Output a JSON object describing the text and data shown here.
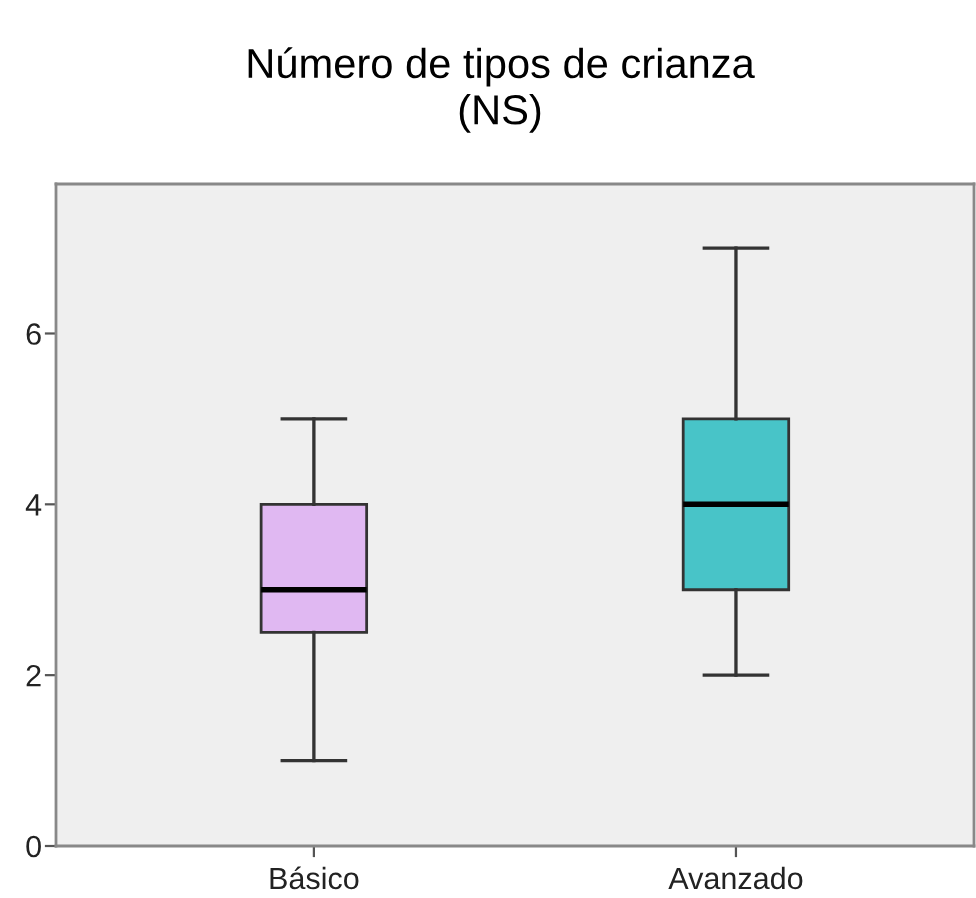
{
  "chart_data": {
    "type": "box",
    "title": "Número de tipos de crianza\n(NS)",
    "categories": [
      "Básico",
      "Avanzado"
    ],
    "colors": [
      "#e0b8f2",
      "#48c4c8"
    ],
    "boxes": [
      {
        "low": 1,
        "q1": 2.5,
        "median": 3,
        "q3": 4,
        "high": 5
      },
      {
        "low": 2,
        "q1": 3,
        "median": 4,
        "q3": 5,
        "high": 7
      }
    ],
    "ylim": [
      0,
      7.75
    ],
    "yticks": [
      0,
      2,
      4,
      6
    ],
    "grid": false,
    "legend": false
  }
}
